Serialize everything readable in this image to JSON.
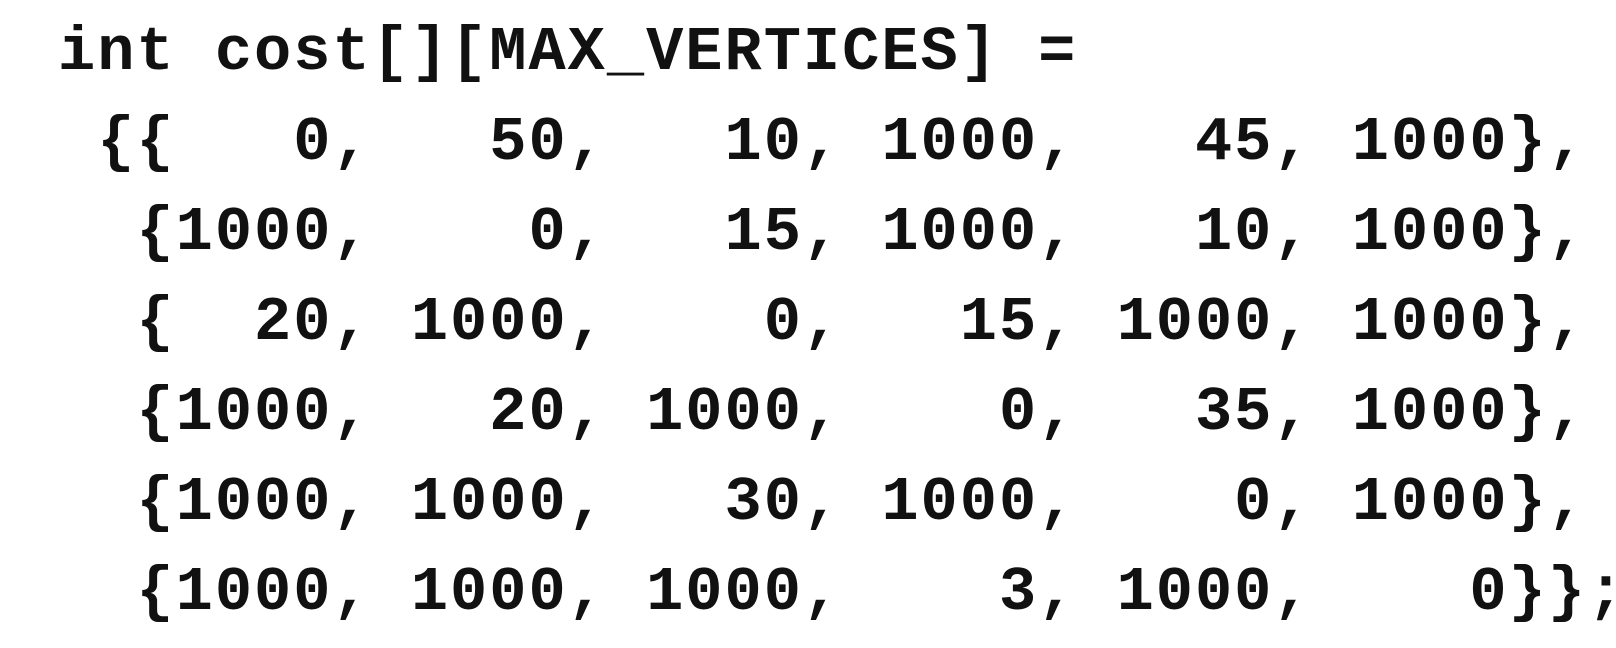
{
  "code": {
    "lines": [
      "int cost[][MAX_VERTICES] =",
      " {{   0,   50,   10, 1000,   45, 1000},",
      "  {1000,    0,   15, 1000,   10, 1000},",
      "  {  20, 1000,    0,   15, 1000, 1000},",
      "  {1000,   20, 1000,    0,   35, 1000},",
      "  {1000, 1000,   30, 1000,    0, 1000},",
      "  {1000, 1000, 1000,    3, 1000,    0}};"
    ]
  }
}
